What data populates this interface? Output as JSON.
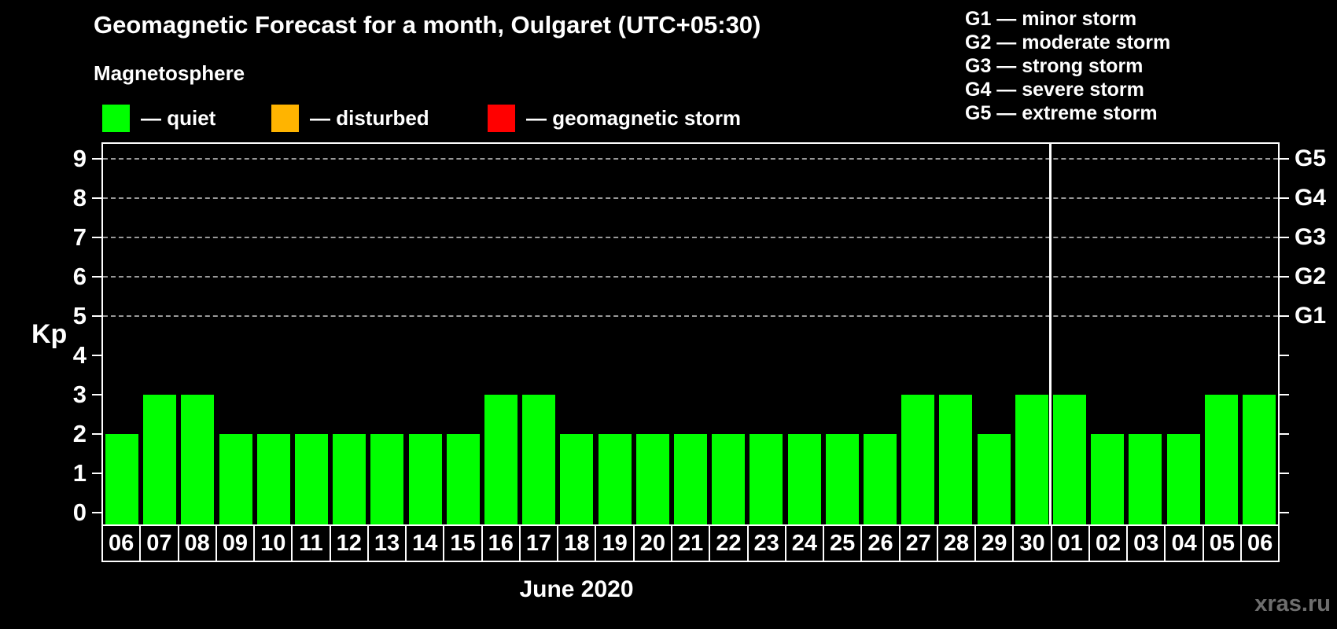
{
  "header": {
    "title": "Geomagnetic Forecast for a month, Oulgaret (UTC+05:30)",
    "subtitle": "Magnetosphere"
  },
  "legend": {
    "items": [
      {
        "name": "quiet",
        "label": "— quiet",
        "color": "#00ff00"
      },
      {
        "name": "disturbed",
        "label": "— disturbed",
        "color": "#ffb400"
      },
      {
        "name": "geomagnetic-storm",
        "label": "— geomagnetic storm",
        "color": "#ff0000"
      }
    ]
  },
  "g_scale_legend": [
    "G1 — minor storm",
    "G2 — moderate storm",
    "G3 — strong storm",
    "G4 — severe storm",
    "G5 — extreme storm"
  ],
  "watermark": "xras.ru",
  "chart_data": {
    "type": "bar",
    "title": "Geomagnetic Forecast for a month, Oulgaret (UTC+05:30)",
    "xlabel": "June 2020",
    "ylabel": "Kp",
    "ylim": [
      0,
      9.6
    ],
    "y_ticks": [
      0,
      1,
      2,
      3,
      4,
      5,
      6,
      7,
      8,
      9
    ],
    "gridline_levels": [
      5,
      6,
      7,
      8,
      9
    ],
    "right_axis_labels": [
      {
        "kp": 5,
        "label": "G1"
      },
      {
        "kp": 6,
        "label": "G2"
      },
      {
        "kp": 7,
        "label": "G3"
      },
      {
        "kp": 8,
        "label": "G4"
      },
      {
        "kp": 9,
        "label": "G5"
      }
    ],
    "categories": [
      "06",
      "07",
      "08",
      "09",
      "10",
      "11",
      "12",
      "13",
      "14",
      "15",
      "16",
      "17",
      "18",
      "19",
      "20",
      "21",
      "22",
      "23",
      "24",
      "25",
      "26",
      "27",
      "28",
      "29",
      "30",
      "01",
      "02",
      "03",
      "04",
      "05",
      "06"
    ],
    "values": [
      2,
      3,
      3,
      2,
      2,
      2,
      2,
      2,
      2,
      2,
      3,
      3,
      2,
      2,
      2,
      2,
      2,
      2,
      2,
      2,
      2,
      3,
      3,
      2,
      3,
      3,
      2,
      2,
      2,
      3,
      3
    ],
    "bar_colors": {
      "quiet": "#00ff00",
      "disturbed": "#ffb400",
      "storm": "#ff0000"
    },
    "month_separator_after_index": 24,
    "legend_position": "top-left",
    "grid": "dashed-horizontal-at-storm-levels",
    "background": "#000000",
    "axis_color": "#ffffff"
  }
}
